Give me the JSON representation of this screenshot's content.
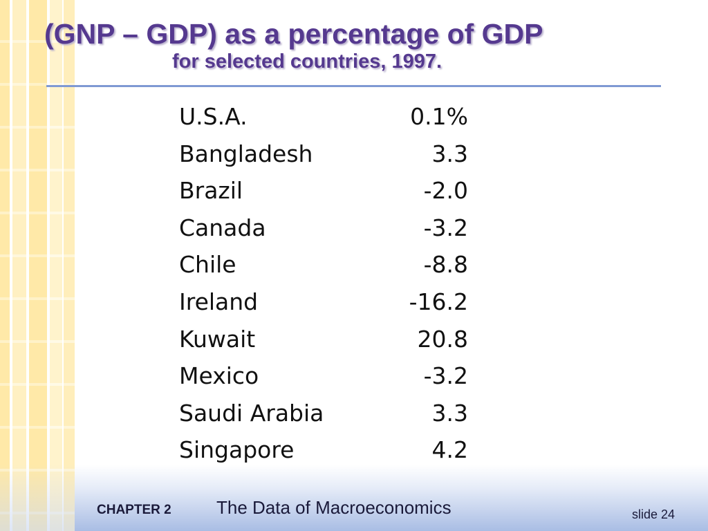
{
  "slide": {
    "title": "(GNP – GDP) as a percentage of GDP",
    "subtitle": "for selected countries, 1997."
  },
  "table": {
    "rows": [
      {
        "country": "U.S.A.",
        "value": "0.1%"
      },
      {
        "country": "Bangladesh",
        "value": "3.3"
      },
      {
        "country": "Brazil",
        "value": "-2.0"
      },
      {
        "country": "Canada",
        "value": "-3.2"
      },
      {
        "country": "Chile",
        "value": "-8.8"
      },
      {
        "country": "Ireland",
        "value": "-16.2"
      },
      {
        "country": "Kuwait",
        "value": "20.8"
      },
      {
        "country": "Mexico",
        "value": "-3.2"
      },
      {
        "country": "Saudi Arabia",
        "value": "3.3"
      },
      {
        "country": "Singapore",
        "value": "4.2"
      }
    ]
  },
  "footer": {
    "chapter_label": "CHAPTER 2",
    "chapter_title": "The Data of Macroeconomics",
    "slide_number": "slide 24"
  },
  "colors": {
    "title": "#55398f",
    "rule": "#7f99d3",
    "stripe": "#ffe9a8",
    "footer_gradient_end": "#a9bde4"
  }
}
